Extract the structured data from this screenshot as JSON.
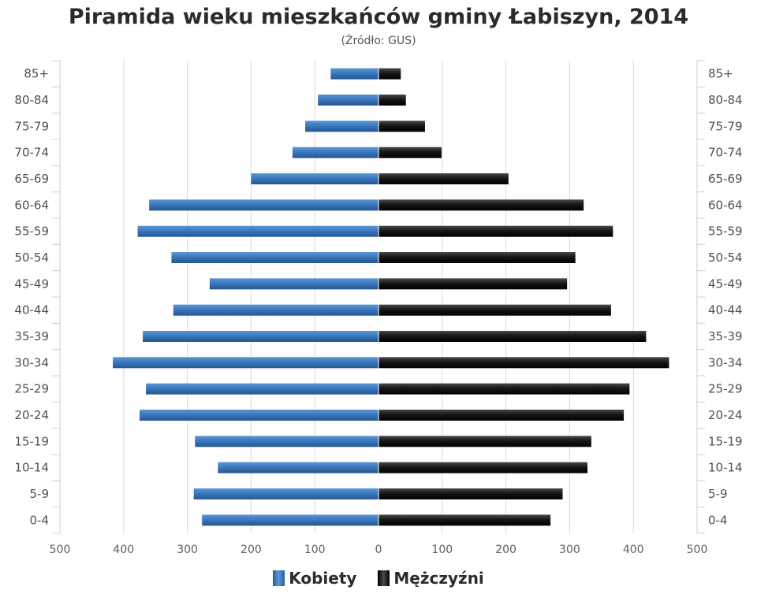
{
  "chart_data": {
    "type": "bar",
    "orientation": "horizontal-population-pyramid",
    "title": "Piramida wieku mieszkańców gminy Łabiszyn, 2014",
    "subtitle": "(Źródło: GUS)",
    "categories": [
      "85+",
      "80-84",
      "75-79",
      "70-74",
      "65-69",
      "60-64",
      "55-59",
      "50-54",
      "45-49",
      "40-44",
      "35-39",
      "30-34",
      "25-29",
      "20-24",
      "15-19",
      "10-14",
      "5-9",
      "0-4"
    ],
    "series": [
      {
        "name": "Kobiety",
        "color": "#3f7cc0",
        "side": "left",
        "values": [
          75,
          95,
          115,
          135,
          200,
          360,
          378,
          325,
          265,
          322,
          370,
          417,
          365,
          375,
          288,
          252,
          290,
          277
        ]
      },
      {
        "name": "Mężczyźni",
        "color": "#111111",
        "side": "right",
        "values": [
          35,
          43,
          73,
          99,
          204,
          322,
          368,
          309,
          296,
          365,
          420,
          456,
          394,
          385,
          334,
          328,
          289,
          270
        ]
      }
    ],
    "xaxis": {
      "ticks": [
        "500",
        "400",
        "300",
        "200",
        "100",
        "0",
        "100",
        "200",
        "300",
        "400",
        "500"
      ],
      "range": [
        -500,
        500
      ]
    },
    "grid": true,
    "legend_position": "bottom-center"
  }
}
